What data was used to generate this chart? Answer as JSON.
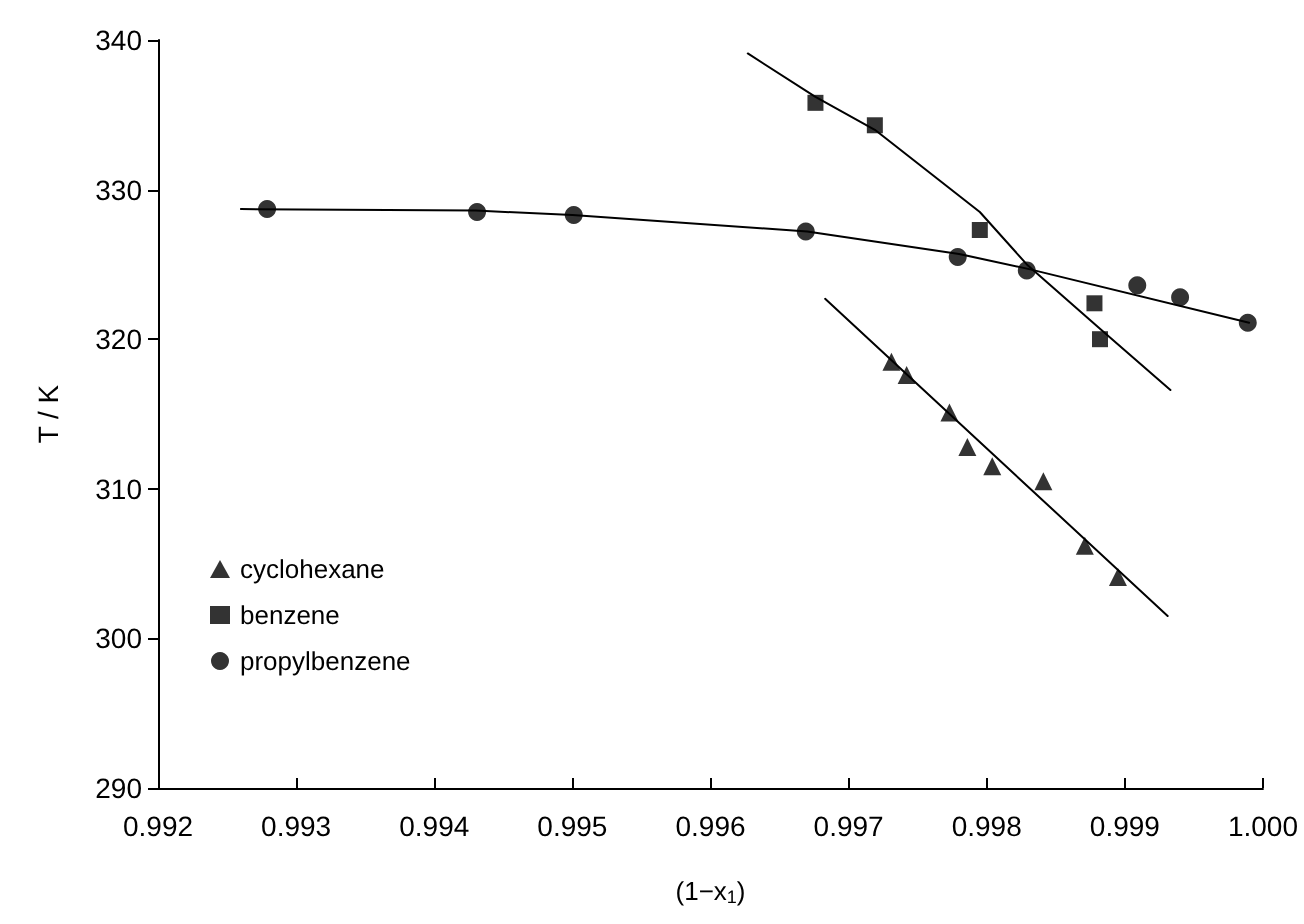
{
  "chart_data": {
    "type": "scatter",
    "xlabel": "(1−x$_{1}$)",
    "ylabel": "T / K",
    "xlim": [
      0.992,
      1.0
    ],
    "xticks": [
      {
        "value": 0.992,
        "label": "0.992"
      },
      {
        "value": 0.993,
        "label": "0.993"
      },
      {
        "value": 0.994,
        "label": "0.994"
      },
      {
        "value": 0.995,
        "label": "0.995"
      },
      {
        "value": 0.996,
        "label": "0.996"
      },
      {
        "value": 0.997,
        "label": "0.997"
      },
      {
        "value": 0.998,
        "label": "0.998"
      },
      {
        "value": 0.999,
        "label": "0.999"
      },
      {
        "value": 1.0,
        "label": "1.000"
      }
    ],
    "ylim": [
      290,
      340
    ],
    "yticks": [
      290,
      300,
      310,
      320,
      330,
      340
    ],
    "grid": false,
    "legend": "bottom left",
    "series": [
      {
        "name": "cyclohexane",
        "color": "#000000",
        "marker": "triangle",
        "x": [
          0.99731,
          0.99742,
          0.99773,
          0.99786,
          0.99804,
          0.99841,
          0.99871,
          0.99895
        ],
        "values": [
          318.5,
          317.6,
          315.1,
          312.8,
          311.5,
          310.5,
          306.2,
          304.1
        ]
      },
      {
        "name": "benzene",
        "color": "#000000",
        "marker": "square",
        "x": [
          0.99676,
          0.99719,
          0.99795,
          0.99878,
          0.99882
        ],
        "values": [
          335.8,
          334.3,
          327.3,
          322.4,
          320.0
        ]
      },
      {
        "name": "propylbenzene",
        "color": "#000000",
        "marker": "circle",
        "x": [
          0.99279,
          0.99431,
          0.99501,
          0.99669,
          0.99779,
          0.99829,
          0.99909,
          0.9994,
          0.99989
        ],
        "values": [
          328.7,
          328.5,
          328.3,
          327.2,
          325.5,
          324.6,
          323.6,
          322.8,
          321.1
        ]
      },
      {
        "type": "line",
        "color": "#000000",
        "marker": "none",
        "x": [
          0.99683,
          0.99931
        ],
        "values": [
          322.7,
          301.5
        ]
      },
      {
        "type": "line",
        "color": "#000000",
        "marker": "none",
        "x": [
          0.99627,
          0.99676,
          0.99719,
          0.99795,
          0.99829,
          0.99882,
          0.99933
        ],
        "values": [
          339.1,
          336.2,
          334.0,
          328.5,
          325.0,
          320.7,
          316.6
        ]
      },
      {
        "type": "line",
        "color": "#000000",
        "marker": "none",
        "x": [
          0.9926,
          0.9943,
          0.995,
          0.9967,
          0.9978,
          0.9983,
          0.9999
        ],
        "values": [
          328.7,
          328.6,
          328.3,
          327.2,
          325.7,
          324.7,
          321.1
        ]
      }
    ]
  }
}
